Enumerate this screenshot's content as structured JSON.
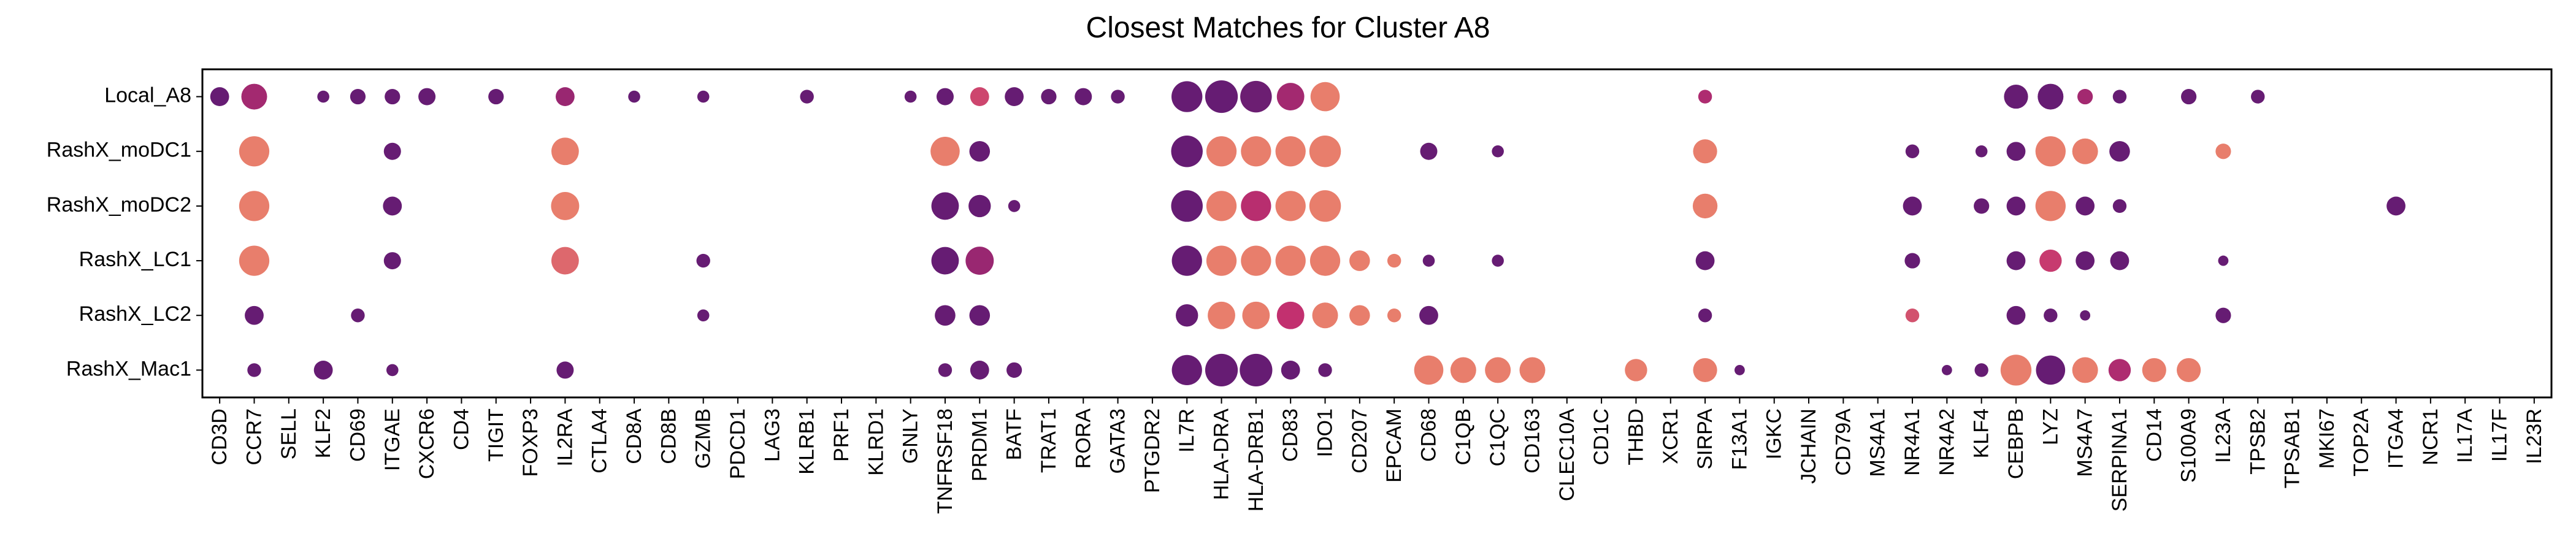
{
  "chart_data": {
    "type": "dotplot",
    "title": "Closest Matches for Cluster A8",
    "xlabel": "",
    "ylabel": "",
    "grid": false,
    "legend": "none",
    "genes": [
      "CD3D",
      "CCR7",
      "SELL",
      "KLF2",
      "CD69",
      "ITGAE",
      "CXCR6",
      "CD4",
      "TIGIT",
      "FOXP3",
      "IL2RA",
      "CTLA4",
      "CD8A",
      "CD8B",
      "GZMB",
      "PDCD1",
      "LAG3",
      "KLRB1",
      "PRF1",
      "KLRD1",
      "GNLY",
      "TNFRSF18",
      "PRDM1",
      "BATF",
      "TRAT1",
      "RORA",
      "GATA3",
      "PTGDR2",
      "IL7R",
      "HLA-DRA",
      "HLA-DRB1",
      "CD83",
      "IDO1",
      "CD207",
      "EPCAM",
      "CD68",
      "C1QB",
      "C1QC",
      "CD163",
      "CLEC10A",
      "CD1C",
      "THBD",
      "XCR1",
      "SIRPA",
      "F13A1",
      "IGKC",
      "JCHAIN",
      "CD79A",
      "MS4A1",
      "NR4A1",
      "NR4A2",
      "KLF4",
      "CEBPB",
      "LYZ",
      "MS4A7",
      "SERPINA1",
      "CD14",
      "S100A9",
      "IL23A",
      "TPSB2",
      "TPSAB1",
      "MKI67",
      "TOP2A",
      "ITGA4",
      "NCR1",
      "IL17A",
      "IL17F",
      "IL23R"
    ],
    "samples": [
      "Local_A8",
      "RashX_moDC1",
      "RashX_moDC2",
      "RashX_LC1",
      "RashX_LC2",
      "RashX_Mac1"
    ],
    "size_scale": "relative dot size 0-1",
    "color_scale": "relative expression 0-1 (dark purple to light orange)",
    "palette": {
      "low": "#5c1a73",
      "mid": "#c2306f",
      "high": "#f8a06a"
    },
    "points": [
      {
        "sample": "Local_A8",
        "gene": "CD3D",
        "size": 0.55,
        "color": 0.05
      },
      {
        "sample": "Local_A8",
        "gene": "CCR7",
        "size": 0.75,
        "color": 0.35
      },
      {
        "sample": "Local_A8",
        "gene": "KLF2",
        "size": 0.35,
        "color": 0.05
      },
      {
        "sample": "Local_A8",
        "gene": "CD69",
        "size": 0.45,
        "color": 0.05
      },
      {
        "sample": "Local_A8",
        "gene": "ITGAE",
        "size": 0.45,
        "color": 0.05
      },
      {
        "sample": "Local_A8",
        "gene": "CXCR6",
        "size": 0.5,
        "color": 0.05
      },
      {
        "sample": "Local_A8",
        "gene": "TIGIT",
        "size": 0.45,
        "color": 0.05
      },
      {
        "sample": "Local_A8",
        "gene": "IL2RA",
        "size": 0.55,
        "color": 0.3
      },
      {
        "sample": "Local_A8",
        "gene": "CD8A",
        "size": 0.35,
        "color": 0.05
      },
      {
        "sample": "Local_A8",
        "gene": "GZMB",
        "size": 0.35,
        "color": 0.05
      },
      {
        "sample": "Local_A8",
        "gene": "KLRB1",
        "size": 0.4,
        "color": 0.05
      },
      {
        "sample": "Local_A8",
        "gene": "GNLY",
        "size": 0.35,
        "color": 0.05
      },
      {
        "sample": "Local_A8",
        "gene": "TNFRSF18",
        "size": 0.5,
        "color": 0.05
      },
      {
        "sample": "Local_A8",
        "gene": "PRDM1",
        "size": 0.55,
        "color": 0.6
      },
      {
        "sample": "Local_A8",
        "gene": "BATF",
        "size": 0.55,
        "color": 0.05
      },
      {
        "sample": "Local_A8",
        "gene": "TRAT1",
        "size": 0.45,
        "color": 0.05
      },
      {
        "sample": "Local_A8",
        "gene": "RORA",
        "size": 0.5,
        "color": 0.05
      },
      {
        "sample": "Local_A8",
        "gene": "GATA3",
        "size": 0.4,
        "color": 0.05
      },
      {
        "sample": "Local_A8",
        "gene": "IL7R",
        "size": 0.9,
        "color": 0.05
      },
      {
        "sample": "Local_A8",
        "gene": "HLA-DRA",
        "size": 0.95,
        "color": 0.05
      },
      {
        "sample": "Local_A8",
        "gene": "HLA-DRB1",
        "size": 0.92,
        "color": 0.08
      },
      {
        "sample": "Local_A8",
        "gene": "CD83",
        "size": 0.8,
        "color": 0.35
      },
      {
        "sample": "Local_A8",
        "gene": "IDO1",
        "size": 0.85,
        "color": 0.85
      },
      {
        "sample": "Local_A8",
        "gene": "SIRPA",
        "size": 0.4,
        "color": 0.4
      },
      {
        "sample": "Local_A8",
        "gene": "CEBPB",
        "size": 0.7,
        "color": 0.05
      },
      {
        "sample": "Local_A8",
        "gene": "LYZ",
        "size": 0.75,
        "color": 0.05
      },
      {
        "sample": "Local_A8",
        "gene": "MS4A7",
        "size": 0.45,
        "color": 0.35
      },
      {
        "sample": "Local_A8",
        "gene": "SERPINA1",
        "size": 0.4,
        "color": 0.05
      },
      {
        "sample": "Local_A8",
        "gene": "S100A9",
        "size": 0.45,
        "color": 0.05
      },
      {
        "sample": "Local_A8",
        "gene": "TPSB2",
        "size": 0.4,
        "color": 0.05
      },
      {
        "sample": "RashX_moDC1",
        "gene": "CCR7",
        "size": 0.88,
        "color": 0.85
      },
      {
        "sample": "RashX_moDC1",
        "gene": "ITGAE",
        "size": 0.5,
        "color": 0.05
      },
      {
        "sample": "RashX_moDC1",
        "gene": "IL2RA",
        "size": 0.8,
        "color": 0.85
      },
      {
        "sample": "RashX_moDC1",
        "gene": "TNFRSF18",
        "size": 0.85,
        "color": 0.85
      },
      {
        "sample": "RashX_moDC1",
        "gene": "PRDM1",
        "size": 0.6,
        "color": 0.05
      },
      {
        "sample": "RashX_moDC1",
        "gene": "IL7R",
        "size": 0.92,
        "color": 0.05
      },
      {
        "sample": "RashX_moDC1",
        "gene": "HLA-DRA",
        "size": 0.88,
        "color": 0.85
      },
      {
        "sample": "RashX_moDC1",
        "gene": "HLA-DRB1",
        "size": 0.88,
        "color": 0.85
      },
      {
        "sample": "RashX_moDC1",
        "gene": "CD83",
        "size": 0.88,
        "color": 0.85
      },
      {
        "sample": "RashX_moDC1",
        "gene": "IDO1",
        "size": 0.92,
        "color": 0.85
      },
      {
        "sample": "RashX_moDC1",
        "gene": "CD68",
        "size": 0.5,
        "color": 0.05
      },
      {
        "sample": "RashX_moDC1",
        "gene": "C1QC",
        "size": 0.35,
        "color": 0.05
      },
      {
        "sample": "RashX_moDC1",
        "gene": "SIRPA",
        "size": 0.7,
        "color": 0.85
      },
      {
        "sample": "RashX_moDC1",
        "gene": "NR4A1",
        "size": 0.4,
        "color": 0.05
      },
      {
        "sample": "RashX_moDC1",
        "gene": "KLF4",
        "size": 0.35,
        "color": 0.05
      },
      {
        "sample": "RashX_moDC1",
        "gene": "CEBPB",
        "size": 0.55,
        "color": 0.05
      },
      {
        "sample": "RashX_moDC1",
        "gene": "LYZ",
        "size": 0.88,
        "color": 0.85
      },
      {
        "sample": "RashX_moDC1",
        "gene": "MS4A7",
        "size": 0.75,
        "color": 0.85
      },
      {
        "sample": "RashX_moDC1",
        "gene": "SERPINA1",
        "size": 0.6,
        "color": 0.05
      },
      {
        "sample": "RashX_moDC1",
        "gene": "IL23A",
        "size": 0.45,
        "color": 0.85
      },
      {
        "sample": "RashX_moDC2",
        "gene": "CCR7",
        "size": 0.88,
        "color": 0.85
      },
      {
        "sample": "RashX_moDC2",
        "gene": "ITGAE",
        "size": 0.55,
        "color": 0.05
      },
      {
        "sample": "RashX_moDC2",
        "gene": "IL2RA",
        "size": 0.82,
        "color": 0.85
      },
      {
        "sample": "RashX_moDC2",
        "gene": "TNFRSF18",
        "size": 0.8,
        "color": 0.05
      },
      {
        "sample": "RashX_moDC2",
        "gene": "PRDM1",
        "size": 0.65,
        "color": 0.05
      },
      {
        "sample": "RashX_moDC2",
        "gene": "BATF",
        "size": 0.35,
        "color": 0.05
      },
      {
        "sample": "RashX_moDC2",
        "gene": "IL7R",
        "size": 0.92,
        "color": 0.05
      },
      {
        "sample": "RashX_moDC2",
        "gene": "HLA-DRA",
        "size": 0.88,
        "color": 0.85
      },
      {
        "sample": "RashX_moDC2",
        "gene": "HLA-DRB1",
        "size": 0.88,
        "color": 0.45
      },
      {
        "sample": "RashX_moDC2",
        "gene": "CD83",
        "size": 0.88,
        "color": 0.85
      },
      {
        "sample": "RashX_moDC2",
        "gene": "IDO1",
        "size": 0.92,
        "color": 0.85
      },
      {
        "sample": "RashX_moDC2",
        "gene": "SIRPA",
        "size": 0.72,
        "color": 0.85
      },
      {
        "sample": "RashX_moDC2",
        "gene": "NR4A1",
        "size": 0.55,
        "color": 0.05
      },
      {
        "sample": "RashX_moDC2",
        "gene": "KLF4",
        "size": 0.45,
        "color": 0.05
      },
      {
        "sample": "RashX_moDC2",
        "gene": "CEBPB",
        "size": 0.55,
        "color": 0.05
      },
      {
        "sample": "RashX_moDC2",
        "gene": "LYZ",
        "size": 0.88,
        "color": 0.85
      },
      {
        "sample": "RashX_moDC2",
        "gene": "MS4A7",
        "size": 0.55,
        "color": 0.05
      },
      {
        "sample": "RashX_moDC2",
        "gene": "SERPINA1",
        "size": 0.4,
        "color": 0.05
      },
      {
        "sample": "RashX_moDC2",
        "gene": "ITGA4",
        "size": 0.55,
        "color": 0.05
      },
      {
        "sample": "RashX_LC1",
        "gene": "CCR7",
        "size": 0.88,
        "color": 0.85
      },
      {
        "sample": "RashX_LC1",
        "gene": "ITGAE",
        "size": 0.5,
        "color": 0.05
      },
      {
        "sample": "RashX_LC1",
        "gene": "IL2RA",
        "size": 0.8,
        "color": 0.75
      },
      {
        "sample": "RashX_LC1",
        "gene": "GZMB",
        "size": 0.4,
        "color": 0.05
      },
      {
        "sample": "RashX_LC1",
        "gene": "TNFRSF18",
        "size": 0.8,
        "color": 0.05
      },
      {
        "sample": "RashX_LC1",
        "gene": "PRDM1",
        "size": 0.82,
        "color": 0.3
      },
      {
        "sample": "RashX_LC1",
        "gene": "IL7R",
        "size": 0.88,
        "color": 0.05
      },
      {
        "sample": "RashX_LC1",
        "gene": "HLA-DRA",
        "size": 0.88,
        "color": 0.85
      },
      {
        "sample": "RashX_LC1",
        "gene": "HLA-DRB1",
        "size": 0.88,
        "color": 0.85
      },
      {
        "sample": "RashX_LC1",
        "gene": "CD83",
        "size": 0.88,
        "color": 0.85
      },
      {
        "sample": "RashX_LC1",
        "gene": "IDO1",
        "size": 0.88,
        "color": 0.85
      },
      {
        "sample": "RashX_LC1",
        "gene": "CD207",
        "size": 0.6,
        "color": 0.85
      },
      {
        "sample": "RashX_LC1",
        "gene": "EPCAM",
        "size": 0.4,
        "color": 0.85
      },
      {
        "sample": "RashX_LC1",
        "gene": "CD68",
        "size": 0.35,
        "color": 0.05
      },
      {
        "sample": "RashX_LC1",
        "gene": "C1QC",
        "size": 0.35,
        "color": 0.05
      },
      {
        "sample": "RashX_LC1",
        "gene": "SIRPA",
        "size": 0.55,
        "color": 0.05
      },
      {
        "sample": "RashX_LC1",
        "gene": "NR4A1",
        "size": 0.45,
        "color": 0.05
      },
      {
        "sample": "RashX_LC1",
        "gene": "CEBPB",
        "size": 0.55,
        "color": 0.05
      },
      {
        "sample": "RashX_LC1",
        "gene": "LYZ",
        "size": 0.65,
        "color": 0.55
      },
      {
        "sample": "RashX_LC1",
        "gene": "MS4A7",
        "size": 0.55,
        "color": 0.05
      },
      {
        "sample": "RashX_LC1",
        "gene": "SERPINA1",
        "size": 0.55,
        "color": 0.05
      },
      {
        "sample": "RashX_LC1",
        "gene": "IL23A",
        "size": 0.3,
        "color": 0.05
      },
      {
        "sample": "RashX_LC2",
        "gene": "CCR7",
        "size": 0.55,
        "color": 0.05
      },
      {
        "sample": "RashX_LC2",
        "gene": "CD69",
        "size": 0.4,
        "color": 0.05
      },
      {
        "sample": "RashX_LC2",
        "gene": "GZMB",
        "size": 0.35,
        "color": 0.05
      },
      {
        "sample": "RashX_LC2",
        "gene": "TNFRSF18",
        "size": 0.6,
        "color": 0.05
      },
      {
        "sample": "RashX_LC2",
        "gene": "PRDM1",
        "size": 0.6,
        "color": 0.05
      },
      {
        "sample": "RashX_LC2",
        "gene": "IL7R",
        "size": 0.65,
        "color": 0.05
      },
      {
        "sample": "RashX_LC2",
        "gene": "HLA-DRA",
        "size": 0.8,
        "color": 0.85
      },
      {
        "sample": "RashX_LC2",
        "gene": "HLA-DRB1",
        "size": 0.8,
        "color": 0.85
      },
      {
        "sample": "RashX_LC2",
        "gene": "CD83",
        "size": 0.8,
        "color": 0.5
      },
      {
        "sample": "RashX_LC2",
        "gene": "IDO1",
        "size": 0.75,
        "color": 0.85
      },
      {
        "sample": "RashX_LC2",
        "gene": "CD207",
        "size": 0.6,
        "color": 0.85
      },
      {
        "sample": "RashX_LC2",
        "gene": "EPCAM",
        "size": 0.4,
        "color": 0.85
      },
      {
        "sample": "RashX_LC2",
        "gene": "CD68",
        "size": 0.55,
        "color": 0.05
      },
      {
        "sample": "RashX_LC2",
        "gene": "SIRPA",
        "size": 0.4,
        "color": 0.05
      },
      {
        "sample": "RashX_LC2",
        "gene": "NR4A1",
        "size": 0.4,
        "color": 0.65
      },
      {
        "sample": "RashX_LC2",
        "gene": "CEBPB",
        "size": 0.55,
        "color": 0.05
      },
      {
        "sample": "RashX_LC2",
        "gene": "LYZ",
        "size": 0.4,
        "color": 0.05
      },
      {
        "sample": "RashX_LC2",
        "gene": "MS4A7",
        "size": 0.3,
        "color": 0.05
      },
      {
        "sample": "RashX_LC2",
        "gene": "IL23A",
        "size": 0.45,
        "color": 0.05
      },
      {
        "sample": "RashX_Mac1",
        "gene": "CCR7",
        "size": 0.4,
        "color": 0.05
      },
      {
        "sample": "RashX_Mac1",
        "gene": "KLF2",
        "size": 0.55,
        "color": 0.05
      },
      {
        "sample": "RashX_Mac1",
        "gene": "ITGAE",
        "size": 0.35,
        "color": 0.05
      },
      {
        "sample": "RashX_Mac1",
        "gene": "IL2RA",
        "size": 0.5,
        "color": 0.05
      },
      {
        "sample": "RashX_Mac1",
        "gene": "TNFRSF18",
        "size": 0.4,
        "color": 0.05
      },
      {
        "sample": "RashX_Mac1",
        "gene": "PRDM1",
        "size": 0.55,
        "color": 0.05
      },
      {
        "sample": "RashX_Mac1",
        "gene": "BATF",
        "size": 0.45,
        "color": 0.05
      },
      {
        "sample": "RashX_Mac1",
        "gene": "IL7R",
        "size": 0.88,
        "color": 0.05
      },
      {
        "sample": "RashX_Mac1",
        "gene": "HLA-DRA",
        "size": 0.95,
        "color": 0.05
      },
      {
        "sample": "RashX_Mac1",
        "gene": "HLA-DRB1",
        "size": 0.95,
        "color": 0.05
      },
      {
        "sample": "RashX_Mac1",
        "gene": "CD83",
        "size": 0.55,
        "color": 0.05
      },
      {
        "sample": "RashX_Mac1",
        "gene": "IDO1",
        "size": 0.4,
        "color": 0.05
      },
      {
        "sample": "RashX_Mac1",
        "gene": "CD68",
        "size": 0.85,
        "color": 0.85
      },
      {
        "sample": "RashX_Mac1",
        "gene": "C1QB",
        "size": 0.75,
        "color": 0.85
      },
      {
        "sample": "RashX_Mac1",
        "gene": "C1QC",
        "size": 0.75,
        "color": 0.85
      },
      {
        "sample": "RashX_Mac1",
        "gene": "CD163",
        "size": 0.75,
        "color": 0.85
      },
      {
        "sample": "RashX_Mac1",
        "gene": "THBD",
        "size": 0.65,
        "color": 0.85
      },
      {
        "sample": "RashX_Mac1",
        "gene": "SIRPA",
        "size": 0.7,
        "color": 0.85
      },
      {
        "sample": "RashX_Mac1",
        "gene": "F13A1",
        "size": 0.3,
        "color": 0.05
      },
      {
        "sample": "RashX_Mac1",
        "gene": "NR4A2",
        "size": 0.3,
        "color": 0.05
      },
      {
        "sample": "RashX_Mac1",
        "gene": "KLF4",
        "size": 0.4,
        "color": 0.05
      },
      {
        "sample": "RashX_Mac1",
        "gene": "CEBPB",
        "size": 0.9,
        "color": 0.85
      },
      {
        "sample": "RashX_Mac1",
        "gene": "LYZ",
        "size": 0.85,
        "color": 0.05
      },
      {
        "sample": "RashX_Mac1",
        "gene": "MS4A7",
        "size": 0.75,
        "color": 0.85
      },
      {
        "sample": "RashX_Mac1",
        "gene": "SERPINA1",
        "size": 0.65,
        "color": 0.4
      },
      {
        "sample": "RashX_Mac1",
        "gene": "CD14",
        "size": 0.7,
        "color": 0.85
      },
      {
        "sample": "RashX_Mac1",
        "gene": "S100A9",
        "size": 0.7,
        "color": 0.85
      }
    ]
  }
}
